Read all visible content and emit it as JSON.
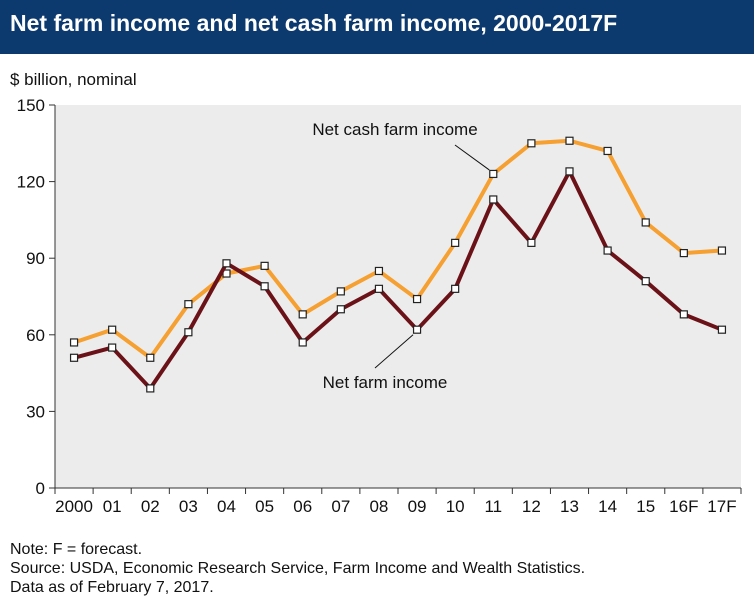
{
  "title": "Net farm income and net cash farm income, 2000-2017F",
  "unit_label": "$ billion, nominal",
  "footer": {
    "note": "Note: F = forecast.",
    "source": "Source: USDA, Economic Research Service, Farm Income and Wealth Statistics.",
    "data_as_of": "Data as of February 7, 2017."
  },
  "colors": {
    "title_bg": "#0d3a6e",
    "plot_bg": "#ececec",
    "net_cash_farm_income": "#f5a030",
    "net_farm_income": "#6b1218"
  },
  "chart_data": {
    "type": "line",
    "categories": [
      "2000",
      "01",
      "02",
      "03",
      "04",
      "05",
      "06",
      "07",
      "08",
      "09",
      "10",
      "11",
      "12",
      "13",
      "14",
      "15",
      "16F",
      "17F"
    ],
    "ylim": [
      0,
      150
    ],
    "yticks": [
      0,
      30,
      60,
      90,
      120,
      150
    ],
    "grid": false,
    "series": [
      {
        "name": "Net cash farm income",
        "values": [
          57,
          62,
          51,
          72,
          84,
          87,
          68,
          77,
          85,
          74,
          96,
          123,
          135,
          136,
          132,
          104,
          92,
          93
        ]
      },
      {
        "name": "Net farm income",
        "values": [
          51,
          55,
          39,
          61,
          88,
          79,
          57,
          70,
          78,
          62,
          78,
          113,
          96,
          124,
          93,
          81,
          68,
          62
        ]
      }
    ]
  }
}
